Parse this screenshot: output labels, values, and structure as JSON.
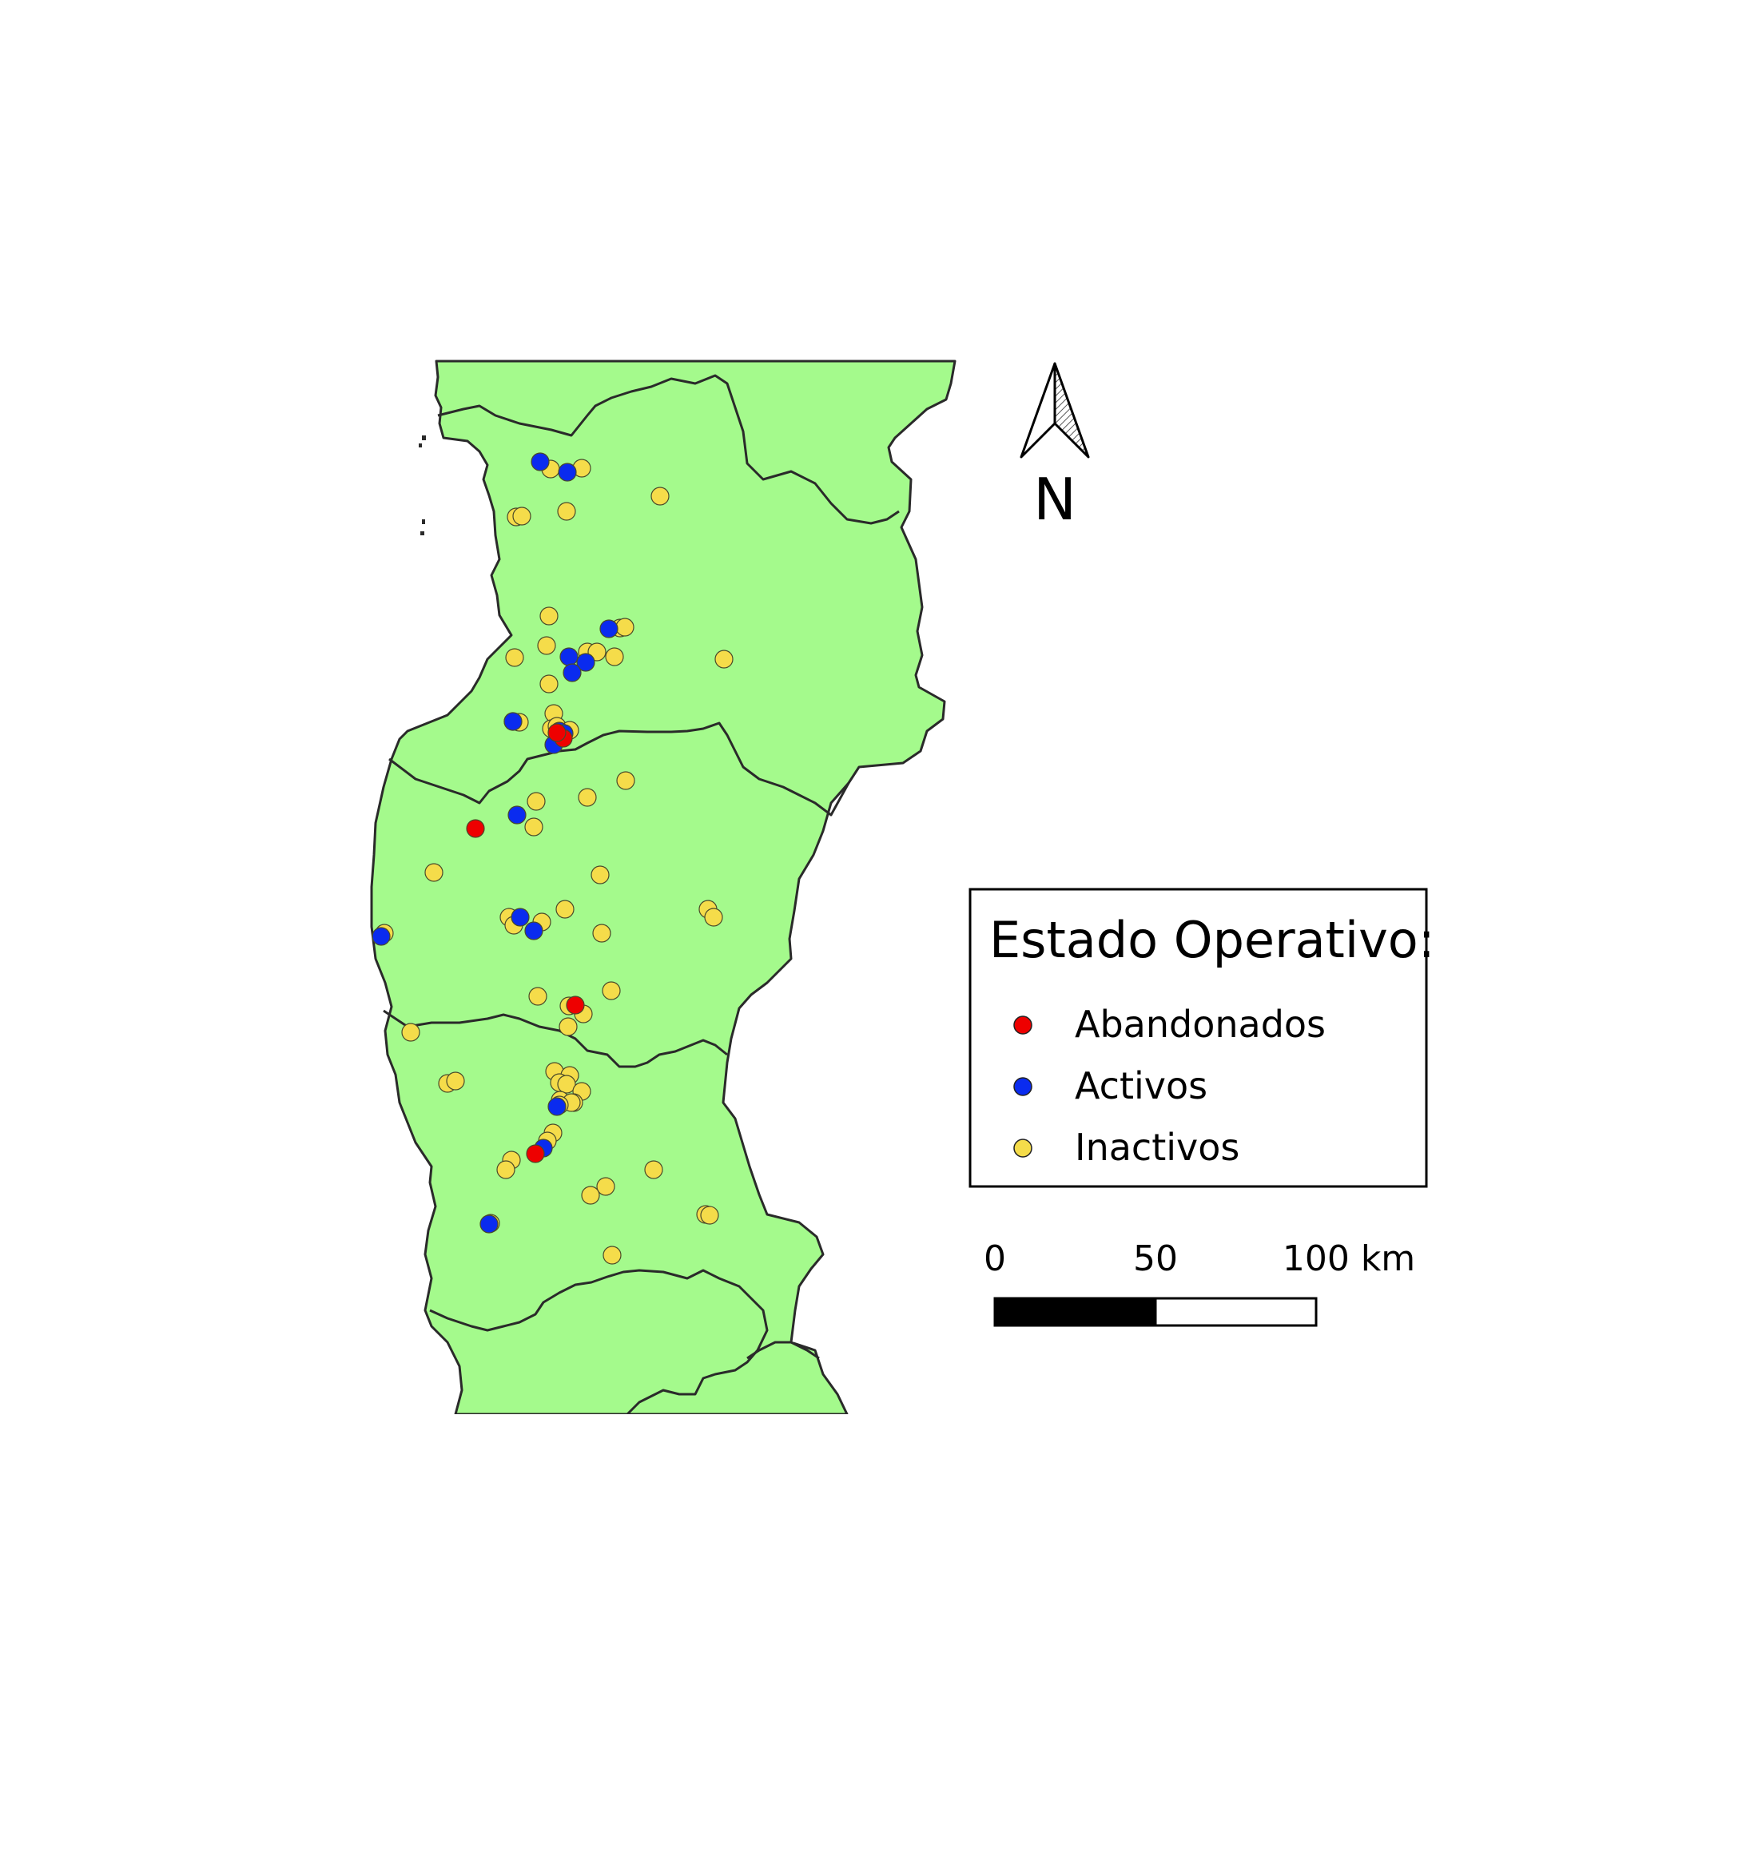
{
  "legend": {
    "title": "Estado Operativo:",
    "items": [
      {
        "label": "Abandonados",
        "color": "#ee0000"
      },
      {
        "label": "Activos",
        "color": "#0a2bef"
      },
      {
        "label": "Inactivos",
        "color": "#f5dc4a"
      }
    ]
  },
  "north_arrow": {
    "letter": "N",
    "icon": "north-arrow-icon"
  },
  "scale_bar": {
    "labels": [
      "0",
      "50",
      "100 km"
    ]
  },
  "colors": {
    "land": "#a4fa8c",
    "border": "#2a2a2a",
    "background": "#ffffff"
  }
}
